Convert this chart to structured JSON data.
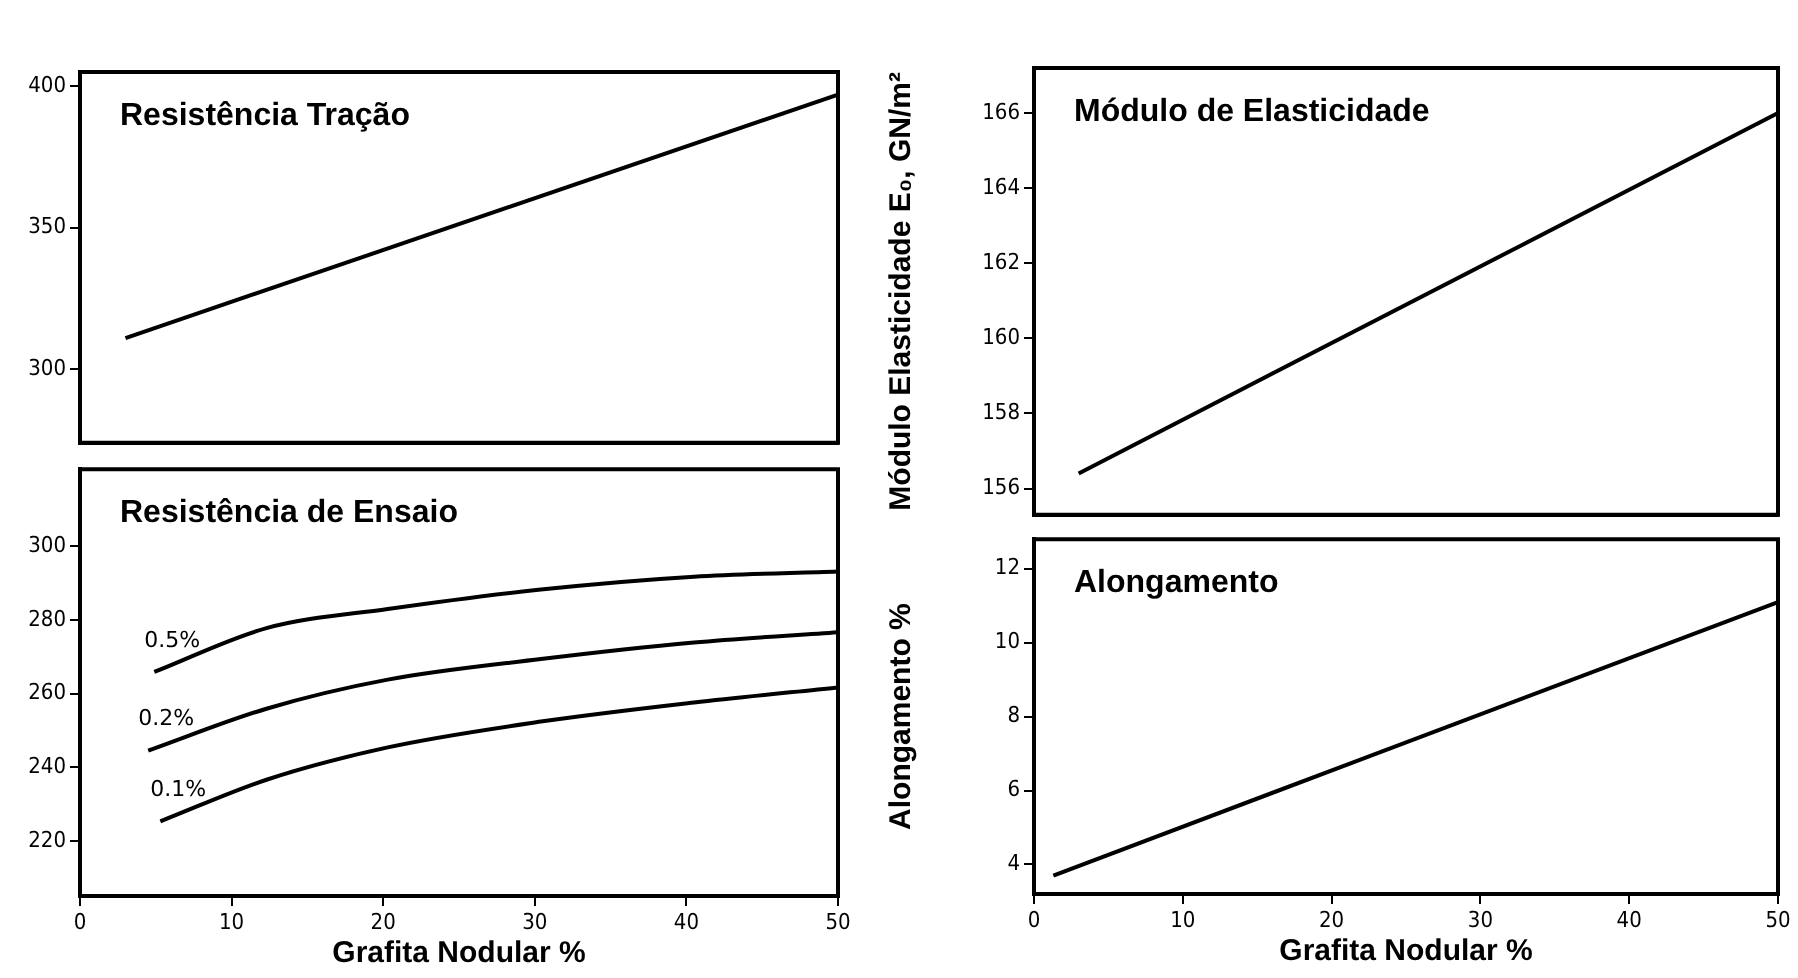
{
  "chart_data": [
    {
      "type": "line",
      "title": "Resistência Tração",
      "xlim": [
        0,
        50
      ],
      "xticks": [
        0,
        10,
        20,
        30,
        40,
        50
      ],
      "ylim": [
        274,
        405
      ],
      "yticks": [
        300,
        350,
        400
      ],
      "tick_labels": "y",
      "grid": false,
      "legend": false,
      "series": [
        {
          "color": "#000000",
          "x": [
            3,
            50
          ],
          "values": [
            311,
            397
          ]
        }
      ]
    },
    {
      "type": "line",
      "title": "Resistência de Ensaio",
      "xlabel": "Grafita Nodular %",
      "xlim": [
        0,
        50
      ],
      "xticks": [
        0,
        10,
        20,
        30,
        40,
        50
      ],
      "ylim": [
        205,
        321
      ],
      "yticks": [
        220,
        240,
        260,
        280,
        300
      ],
      "grid": false,
      "legend": false,
      "series": [
        {
          "name": "0.5%",
          "color": "#000000",
          "x": [
            4.9,
            12.3,
            20.3,
            30.4,
            40.5,
            50
          ],
          "values": [
            265.9,
            277.8,
            283,
            288.3,
            291.8,
            293.2
          ]
        },
        {
          "name": "0.2%",
          "color": "#000000",
          "x": [
            4.5,
            12.3,
            20.3,
            30.4,
            40.5,
            50
          ],
          "values": [
            244.5,
            255.9,
            263.8,
            269.4,
            273.9,
            276.7
          ]
        },
        {
          "name": "0.1%",
          "color": "#000000",
          "x": [
            5.3,
            12.3,
            20.3,
            30.4,
            40.5,
            50
          ],
          "values": [
            225.3,
            236.6,
            245.4,
            252.4,
            257.6,
            261.7
          ]
        }
      ]
    },
    {
      "type": "line",
      "title": "Módulo de Elasticidade",
      "ylabel": "Módulo Elasticidade E₀, GN/m²",
      "xlim": [
        0,
        50
      ],
      "xticks": [
        0,
        10,
        20,
        30,
        40,
        50
      ],
      "ylim": [
        155.3,
        167.2
      ],
      "yticks": [
        156,
        158,
        160,
        162,
        164,
        166
      ],
      "tick_labels": "y",
      "grid": false,
      "legend": false,
      "series": [
        {
          "color": "#000000",
          "x": [
            3,
            50
          ],
          "values": [
            156.4,
            166
          ]
        }
      ]
    },
    {
      "type": "line",
      "title": "Alongamento",
      "xlabel": "Grafita Nodular %",
      "ylabel": "Alongamento %",
      "xlim": [
        0,
        50
      ],
      "xticks": [
        0,
        10,
        20,
        30,
        40,
        50
      ],
      "ylim": [
        3.2,
        12.8
      ],
      "yticks": [
        4,
        6,
        8,
        10,
        12
      ],
      "grid": false,
      "legend": false,
      "series": [
        {
          "color": "#000000",
          "x": [
            1.3,
            50
          ],
          "values": [
            3.7,
            11.1
          ]
        }
      ]
    }
  ]
}
